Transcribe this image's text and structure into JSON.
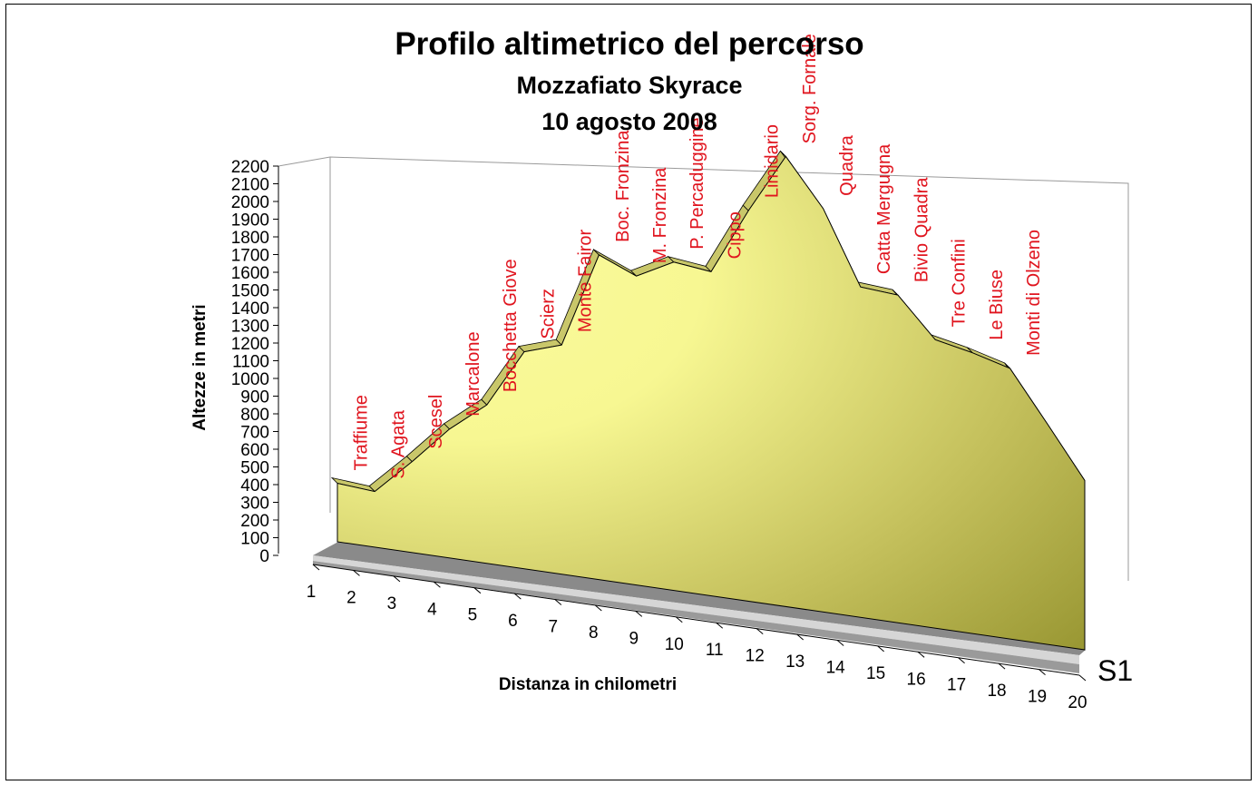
{
  "chart_data": {
    "type": "area",
    "title": "Profilo altimetrico del percorso",
    "subtitle": "Mozzafiato Skyrace",
    "date_line": "10 agosto 2008",
    "xlabel": "Distanza in chilometri",
    "ylabel": "Altezze in metri",
    "series_label": "S1",
    "ylim": [
      0,
      2200
    ],
    "y_ticks": [
      0,
      100,
      200,
      300,
      400,
      500,
      600,
      700,
      800,
      900,
      1000,
      1100,
      1200,
      1300,
      1400,
      1500,
      1600,
      1700,
      1800,
      1900,
      2000,
      2100,
      2200
    ],
    "x_ticks": [
      1,
      2,
      3,
      4,
      5,
      6,
      7,
      8,
      9,
      10,
      11,
      12,
      13,
      14,
      15,
      16,
      17,
      18,
      19,
      20
    ],
    "points": [
      {
        "x": 1,
        "y": 330
      },
      {
        "x": 2,
        "y": 310
      },
      {
        "x": 3,
        "y": 500
      },
      {
        "x": 4,
        "y": 700
      },
      {
        "x": 5,
        "y": 850
      },
      {
        "x": 6,
        "y": 1150
      },
      {
        "x": 7,
        "y": 1200
      },
      {
        "x": 8,
        "y": 1680
      },
      {
        "x": 9,
        "y": 1580
      },
      {
        "x": 10,
        "y": 1660
      },
      {
        "x": 11,
        "y": 1620
      },
      {
        "x": 12,
        "y": 1930
      },
      {
        "x": 13,
        "y": 2200
      },
      {
        "x": 14,
        "y": 1950
      },
      {
        "x": 15,
        "y": 1580
      },
      {
        "x": 16,
        "y": 1550
      },
      {
        "x": 17,
        "y": 1350
      },
      {
        "x": 18,
        "y": 1300
      },
      {
        "x": 19,
        "y": 1240
      },
      {
        "x": 20,
        "y": 1000
      },
      {
        "x": 21,
        "y": 760
      }
    ],
    "annotations": [
      "Traffiume",
      "S. Agata",
      "Scesel",
      "Marcalone",
      "Bocchetta Giove",
      "Scierz",
      "Monte Fairor",
      "Boc. Fronzina",
      "M. Fronzina",
      "P. Percaduggine",
      "Cippo",
      "Limidario",
      "Sorg. Fornale",
      "Quadra",
      "Catta Mergugna",
      "Bivio Quadra",
      "Tre Confini",
      "Le Biuse",
      "Monti di Olzeno"
    ],
    "colors": {
      "area_light": "#fbfb9c",
      "area_dark": "#9c9a36",
      "top_face": "#c9c76a",
      "annotation": "#e0141e",
      "floor_dark": "#7a7a7a",
      "floor_light": "#c8c8c8"
    }
  }
}
